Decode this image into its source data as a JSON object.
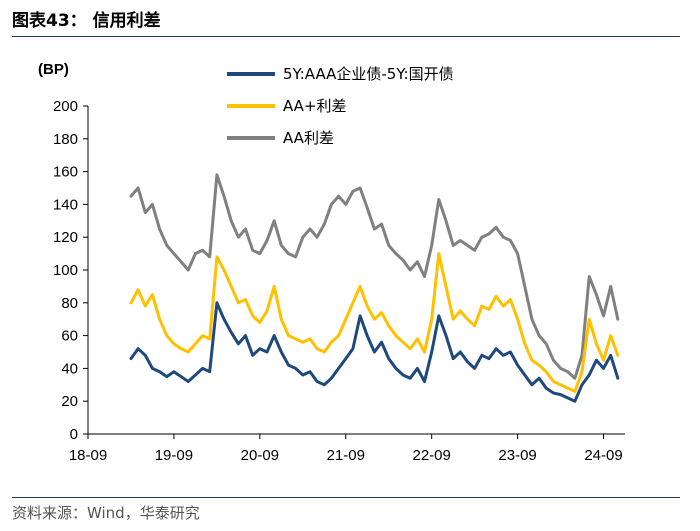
{
  "figure": {
    "title": "图表43： 信用利差",
    "source": "资料来源：Wind，华泰研究"
  },
  "chart_data": {
    "type": "line",
    "unit_label": "(BP)",
    "ylim": [
      0,
      200
    ],
    "yticks": [
      0,
      20,
      40,
      60,
      80,
      100,
      120,
      140,
      160,
      180,
      200
    ],
    "xlim": [
      "2018-09",
      "2024-12"
    ],
    "xticks": [
      "18-09",
      "19-09",
      "20-09",
      "21-09",
      "22-09",
      "23-09",
      "24-09"
    ],
    "grid": false,
    "legend_position": "top",
    "series": [
      {
        "name": "5Y:AAA企业债-5Y:国开债",
        "color": "#1f497d",
        "points": [
          [
            "2019-03",
            46
          ],
          [
            "2019-04",
            52
          ],
          [
            "2019-05",
            48
          ],
          [
            "2019-06",
            40
          ],
          [
            "2019-07",
            38
          ],
          [
            "2019-08",
            35
          ],
          [
            "2019-09",
            38
          ],
          [
            "2019-10",
            35
          ],
          [
            "2019-11",
            32
          ],
          [
            "2019-12",
            36
          ],
          [
            "2020-01",
            40
          ],
          [
            "2020-02",
            38
          ],
          [
            "2020-03",
            80
          ],
          [
            "2020-04",
            70
          ],
          [
            "2020-05",
            62
          ],
          [
            "2020-06",
            55
          ],
          [
            "2020-07",
            60
          ],
          [
            "2020-08",
            48
          ],
          [
            "2020-09",
            52
          ],
          [
            "2020-10",
            50
          ],
          [
            "2020-11",
            60
          ],
          [
            "2020-12",
            50
          ],
          [
            "2021-01",
            42
          ],
          [
            "2021-02",
            40
          ],
          [
            "2021-03",
            36
          ],
          [
            "2021-04",
            38
          ],
          [
            "2021-05",
            32
          ],
          [
            "2021-06",
            30
          ],
          [
            "2021-07",
            34
          ],
          [
            "2021-08",
            40
          ],
          [
            "2021-09",
            46
          ],
          [
            "2021-10",
            52
          ],
          [
            "2021-11",
            72
          ],
          [
            "2021-12",
            60
          ],
          [
            "2022-01",
            50
          ],
          [
            "2022-02",
            56
          ],
          [
            "2022-03",
            46
          ],
          [
            "2022-04",
            40
          ],
          [
            "2022-05",
            36
          ],
          [
            "2022-06",
            34
          ],
          [
            "2022-07",
            40
          ],
          [
            "2022-08",
            32
          ],
          [
            "2022-09",
            50
          ],
          [
            "2022-10",
            72
          ],
          [
            "2022-11",
            60
          ],
          [
            "2022-12",
            46
          ],
          [
            "2023-01",
            50
          ],
          [
            "2023-02",
            44
          ],
          [
            "2023-03",
            40
          ],
          [
            "2023-04",
            48
          ],
          [
            "2023-05",
            46
          ],
          [
            "2023-06",
            52
          ],
          [
            "2023-07",
            48
          ],
          [
            "2023-08",
            50
          ],
          [
            "2023-09",
            42
          ],
          [
            "2023-10",
            36
          ],
          [
            "2023-11",
            30
          ],
          [
            "2023-12",
            34
          ],
          [
            "2024-01",
            28
          ],
          [
            "2024-02",
            25
          ],
          [
            "2024-03",
            24
          ],
          [
            "2024-04",
            22
          ],
          [
            "2024-05",
            20
          ],
          [
            "2024-06",
            30
          ],
          [
            "2024-07",
            36
          ],
          [
            "2024-08",
            45
          ],
          [
            "2024-09",
            40
          ],
          [
            "2024-10",
            48
          ],
          [
            "2024-11",
            34
          ]
        ]
      },
      {
        "name": "AA+利差",
        "color": "#ffc000",
        "points": [
          [
            "2019-03",
            80
          ],
          [
            "2019-04",
            88
          ],
          [
            "2019-05",
            78
          ],
          [
            "2019-06",
            85
          ],
          [
            "2019-07",
            70
          ],
          [
            "2019-08",
            60
          ],
          [
            "2019-09",
            55
          ],
          [
            "2019-10",
            52
          ],
          [
            "2019-11",
            50
          ],
          [
            "2019-12",
            55
          ],
          [
            "2020-01",
            60
          ],
          [
            "2020-02",
            58
          ],
          [
            "2020-03",
            108
          ],
          [
            "2020-04",
            100
          ],
          [
            "2020-05",
            90
          ],
          [
            "2020-06",
            80
          ],
          [
            "2020-07",
            82
          ],
          [
            "2020-08",
            72
          ],
          [
            "2020-09",
            68
          ],
          [
            "2020-10",
            75
          ],
          [
            "2020-11",
            90
          ],
          [
            "2020-12",
            70
          ],
          [
            "2021-01",
            60
          ],
          [
            "2021-02",
            58
          ],
          [
            "2021-03",
            56
          ],
          [
            "2021-04",
            58
          ],
          [
            "2021-05",
            52
          ],
          [
            "2021-06",
            50
          ],
          [
            "2021-07",
            56
          ],
          [
            "2021-08",
            60
          ],
          [
            "2021-09",
            70
          ],
          [
            "2021-10",
            80
          ],
          [
            "2021-11",
            90
          ],
          [
            "2021-12",
            78
          ],
          [
            "2022-01",
            70
          ],
          [
            "2022-02",
            74
          ],
          [
            "2022-03",
            66
          ],
          [
            "2022-04",
            60
          ],
          [
            "2022-05",
            56
          ],
          [
            "2022-06",
            52
          ],
          [
            "2022-07",
            58
          ],
          [
            "2022-08",
            50
          ],
          [
            "2022-09",
            70
          ],
          [
            "2022-10",
            110
          ],
          [
            "2022-11",
            90
          ],
          [
            "2022-12",
            70
          ],
          [
            "2023-01",
            75
          ],
          [
            "2023-02",
            70
          ],
          [
            "2023-03",
            66
          ],
          [
            "2023-04",
            78
          ],
          [
            "2023-05",
            76
          ],
          [
            "2023-06",
            84
          ],
          [
            "2023-07",
            78
          ],
          [
            "2023-08",
            82
          ],
          [
            "2023-09",
            70
          ],
          [
            "2023-10",
            55
          ],
          [
            "2023-11",
            45
          ],
          [
            "2023-12",
            42
          ],
          [
            "2024-01",
            38
          ],
          [
            "2024-02",
            32
          ],
          [
            "2024-03",
            30
          ],
          [
            "2024-04",
            28
          ],
          [
            "2024-05",
            26
          ],
          [
            "2024-06",
            38
          ],
          [
            "2024-07",
            70
          ],
          [
            "2024-08",
            55
          ],
          [
            "2024-09",
            45
          ],
          [
            "2024-10",
            60
          ],
          [
            "2024-11",
            48
          ]
        ]
      },
      {
        "name": "AA利差",
        "color": "#808080",
        "points": [
          [
            "2019-03",
            145
          ],
          [
            "2019-04",
            150
          ],
          [
            "2019-05",
            135
          ],
          [
            "2019-06",
            140
          ],
          [
            "2019-07",
            125
          ],
          [
            "2019-08",
            115
          ],
          [
            "2019-09",
            110
          ],
          [
            "2019-10",
            105
          ],
          [
            "2019-11",
            100
          ],
          [
            "2019-12",
            110
          ],
          [
            "2020-01",
            112
          ],
          [
            "2020-02",
            108
          ],
          [
            "2020-03",
            158
          ],
          [
            "2020-04",
            145
          ],
          [
            "2020-05",
            130
          ],
          [
            "2020-06",
            120
          ],
          [
            "2020-07",
            125
          ],
          [
            "2020-08",
            112
          ],
          [
            "2020-09",
            110
          ],
          [
            "2020-10",
            118
          ],
          [
            "2020-11",
            130
          ],
          [
            "2020-12",
            115
          ],
          [
            "2021-01",
            110
          ],
          [
            "2021-02",
            108
          ],
          [
            "2021-03",
            120
          ],
          [
            "2021-04",
            125
          ],
          [
            "2021-05",
            120
          ],
          [
            "2021-06",
            128
          ],
          [
            "2021-07",
            140
          ],
          [
            "2021-08",
            145
          ],
          [
            "2021-09",
            140
          ],
          [
            "2021-10",
            148
          ],
          [
            "2021-11",
            150
          ],
          [
            "2021-12",
            138
          ],
          [
            "2022-01",
            125
          ],
          [
            "2022-02",
            128
          ],
          [
            "2022-03",
            115
          ],
          [
            "2022-04",
            110
          ],
          [
            "2022-05",
            106
          ],
          [
            "2022-06",
            100
          ],
          [
            "2022-07",
            105
          ],
          [
            "2022-08",
            96
          ],
          [
            "2022-09",
            115
          ],
          [
            "2022-10",
            143
          ],
          [
            "2022-11",
            130
          ],
          [
            "2022-12",
            115
          ],
          [
            "2023-01",
            118
          ],
          [
            "2023-02",
            115
          ],
          [
            "2023-03",
            112
          ],
          [
            "2023-04",
            120
          ],
          [
            "2023-05",
            122
          ],
          [
            "2023-06",
            126
          ],
          [
            "2023-07",
            120
          ],
          [
            "2023-08",
            118
          ],
          [
            "2023-09",
            110
          ],
          [
            "2023-10",
            90
          ],
          [
            "2023-11",
            70
          ],
          [
            "2023-12",
            60
          ],
          [
            "2024-01",
            55
          ],
          [
            "2024-02",
            45
          ],
          [
            "2024-03",
            40
          ],
          [
            "2024-04",
            38
          ],
          [
            "2024-05",
            34
          ],
          [
            "2024-06",
            48
          ],
          [
            "2024-07",
            96
          ],
          [
            "2024-08",
            85
          ],
          [
            "2024-09",
            72
          ],
          [
            "2024-10",
            90
          ],
          [
            "2024-11",
            70
          ]
        ]
      }
    ]
  }
}
